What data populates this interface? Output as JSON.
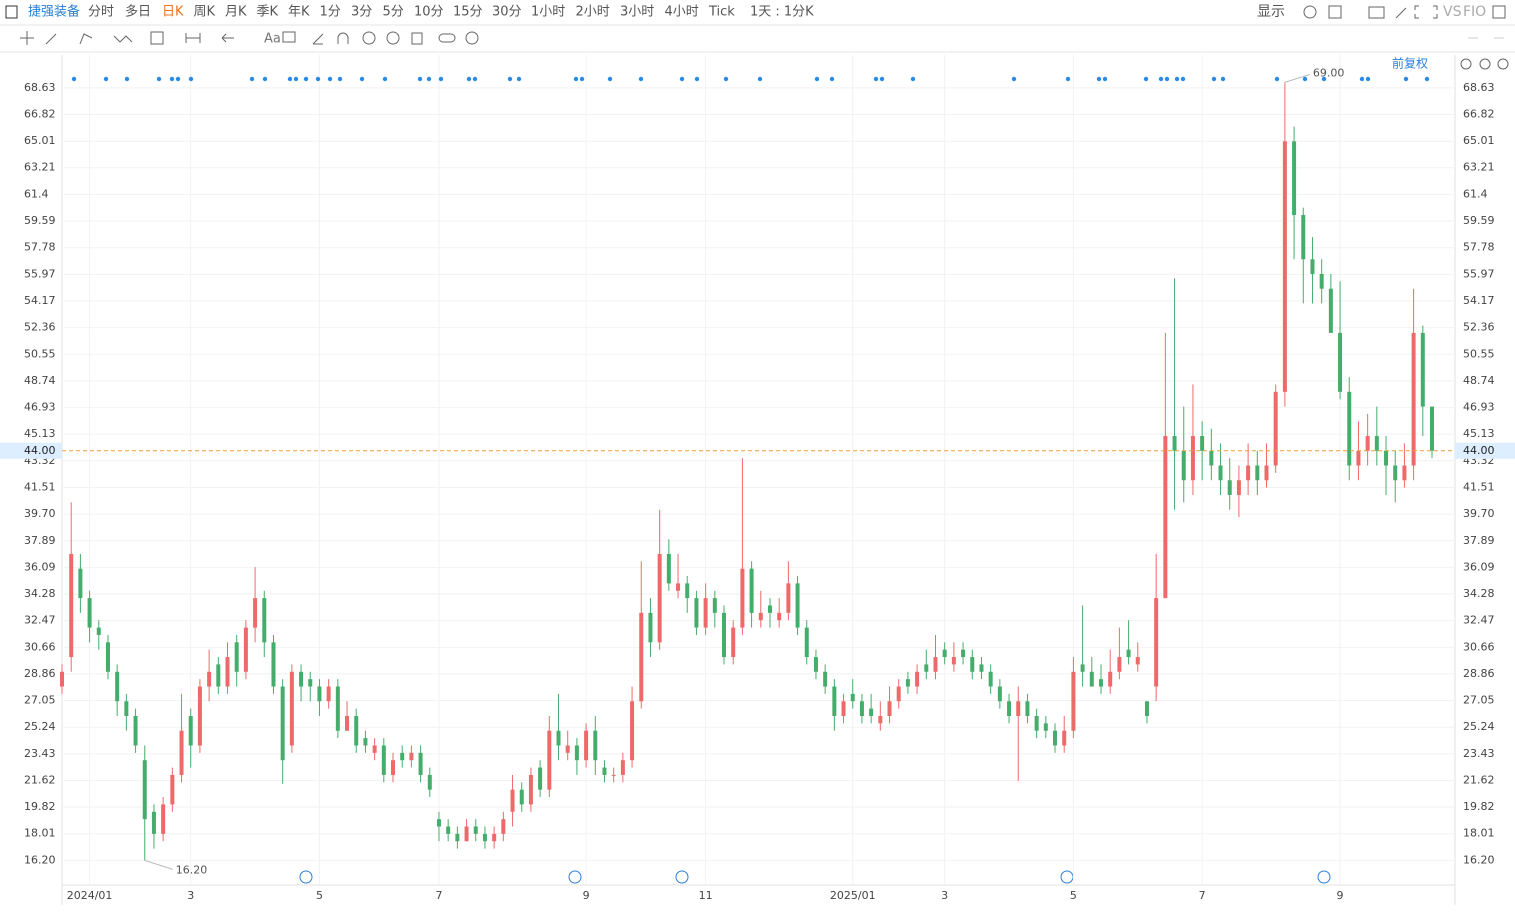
{
  "toolbar": {
    "symbol": "捷强装备",
    "periods": [
      "分时",
      "多日",
      "日K",
      "周K",
      "月K",
      "季K",
      "年K",
      "1分",
      "3分",
      "5分",
      "10分",
      "15分",
      "30分",
      "1小时",
      "2小时",
      "3小时",
      "4小时",
      "Tick",
      "1天 : 1分K"
    ],
    "active": "日K",
    "right": [
      "显示",
      "VS",
      "FIO"
    ],
    "text_tool": "Aa"
  },
  "chart_data": {
    "type": "candlestick",
    "adjust": "前复权",
    "up_color": "#ee6a6a",
    "down_color": "#45ad6b",
    "open": [
      28,
      30,
      36,
      34,
      32,
      31,
      29,
      27,
      26,
      23,
      19.5,
      18,
      20,
      22,
      26,
      24,
      28,
      29.5,
      28,
      31,
      29,
      32,
      34,
      31,
      28,
      24,
      29,
      28.5,
      28,
      27,
      28,
      25,
      26,
      24.5,
      23.5,
      24,
      22,
      23.5,
      23,
      23.5,
      22,
      19,
      18.5,
      18,
      17.5,
      18.5,
      18,
      17.5,
      18,
      19.5,
      21,
      20,
      22.5,
      21,
      25,
      23.5,
      24,
      23,
      25,
      22.5,
      22,
      22,
      23,
      27,
      33,
      31,
      37,
      34.5,
      35,
      34,
      32,
      34,
      33,
      30,
      32,
      36,
      32.5,
      33.5,
      32.5,
      33,
      35,
      32,
      30,
      29,
      28,
      26,
      27.5,
      27,
      26.5,
      25.5,
      26,
      27,
      28.5,
      28,
      29.5,
      29,
      30.5,
      29.5,
      30.5,
      30,
      29.5,
      29,
      28,
      27,
      26,
      27,
      26,
      25.5,
      25,
      24,
      25,
      29.5,
      29,
      28.5,
      28,
      29,
      30.5,
      29.5,
      27,
      28,
      34,
      45,
      44,
      42,
      45,
      44,
      43,
      42,
      41,
      42,
      43,
      42,
      43,
      48,
      65,
      60,
      57,
      56,
      55,
      52,
      48,
      43,
      44,
      45,
      44,
      43,
      42,
      43,
      52,
      47
    ],
    "high": [
      29.5,
      40.5,
      37,
      34.5,
      32.5,
      31.5,
      29.5,
      27.5,
      26.5,
      24,
      20,
      20.5,
      22.5,
      27.5,
      26.5,
      28.5,
      30.5,
      30,
      31,
      31.5,
      32.5,
      36.1,
      34.5,
      31.5,
      28.5,
      29.5,
      29.5,
      29,
      28.5,
      28.5,
      28.5,
      27,
      26.5,
      25,
      24.5,
      24.5,
      23.5,
      24,
      24,
      24,
      22.5,
      19.5,
      19,
      18.5,
      19,
      19,
      18.5,
      18.5,
      19.5,
      22,
      21.5,
      22.5,
      23,
      26,
      27.5,
      25,
      24.5,
      25.5,
      26,
      23,
      22.5,
      23.5,
      28,
      36.5,
      34,
      40,
      38,
      37,
      35.5,
      34.5,
      35,
      34.5,
      33.5,
      32.5,
      43.5,
      36.5,
      34.5,
      34,
      34,
      36.5,
      35.5,
      32.5,
      30.5,
      29.5,
      28.5,
      27.5,
      28.5,
      27.5,
      27.5,
      27,
      28,
      28.5,
      29,
      29.5,
      30.5,
      31.5,
      31,
      31,
      31,
      30.5,
      30,
      29.5,
      28.5,
      27.5,
      28,
      27.5,
      26.5,
      26,
      25.5,
      26,
      30,
      33.5,
      30,
      29.5,
      30.5,
      32,
      32.5,
      31,
      27,
      37,
      52,
      55.7,
      47,
      48.5,
      46,
      45.5,
      44.5,
      43.5,
      43,
      44.5,
      44,
      44.5,
      48.5,
      69,
      66,
      60.5,
      58.5,
      57,
      56,
      55.5,
      49,
      46,
      46.5,
      47,
      45,
      44,
      44.5,
      55,
      52.5,
      47
    ],
    "low": [
      27.5,
      29,
      33,
      31,
      30.5,
      28.5,
      26,
      25,
      23.5,
      16.2,
      17,
      17.5,
      19.5,
      21.5,
      22.5,
      23.5,
      27,
      27.5,
      27.5,
      28,
      28.5,
      31,
      30,
      27.5,
      21.4,
      23.5,
      27,
      27,
      26,
      26.5,
      24.5,
      25,
      23.5,
      23.5,
      23,
      21.5,
      21.5,
      22.5,
      22.5,
      21.5,
      20.5,
      17.5,
      17.5,
      17,
      17.5,
      17.5,
      17,
      17,
      17.5,
      18.5,
      19.5,
      19.5,
      20.5,
      20.5,
      23,
      23,
      22,
      22.5,
      22,
      21.5,
      21.5,
      21.5,
      22.5,
      26.5,
      30,
      30.5,
      34.5,
      34,
      33,
      31.5,
      31.5,
      32,
      29.5,
      29.5,
      31.5,
      32,
      32,
      32,
      32,
      32.5,
      31.5,
      29.5,
      28.5,
      27.5,
      25,
      25.5,
      26.5,
      25.5,
      25.5,
      25,
      25.5,
      26.5,
      27.5,
      27.5,
      28.5,
      28.5,
      29.5,
      29,
      29.5,
      28.5,
      28.5,
      27.5,
      26.5,
      25.5,
      21.6,
      25.5,
      24.5,
      24.5,
      23.5,
      23.5,
      24.5,
      28,
      28,
      27.5,
      27.5,
      28.5,
      29.5,
      29,
      25.5,
      27,
      34,
      40,
      40.5,
      41,
      42,
      42,
      41,
      40,
      39.5,
      41,
      41,
      41.5,
      42.5,
      47,
      57,
      54,
      54,
      54,
      52,
      47.5,
      42,
      42,
      43,
      43,
      41,
      40.5,
      41.5,
      42,
      45,
      43.5
    ],
    "close": [
      29,
      37,
      34,
      32,
      31.5,
      29,
      27,
      26,
      24,
      19,
      18,
      20,
      22,
      25,
      24,
      28,
      29,
      28,
      30,
      29,
      32,
      34,
      31,
      28,
      23,
      29,
      28,
      28,
      27,
      28,
      25,
      26,
      24,
      24,
      24,
      22,
      23,
      23,
      23.5,
      22,
      21,
      18.5,
      18,
      17.5,
      18.5,
      18,
      17.5,
      18,
      19,
      21,
      20,
      22,
      21,
      25,
      24,
      24,
      23,
      25,
      23,
      22,
      22,
      23,
      27,
      33,
      31,
      37,
      35,
      35,
      34,
      32,
      34,
      33,
      30,
      32,
      36,
      33,
      33,
      33,
      33,
      35,
      32,
      30,
      29,
      28,
      26,
      27,
      27,
      26,
      26,
      26,
      27,
      28,
      28,
      29,
      29,
      30,
      30,
      30,
      30,
      29,
      29,
      28,
      27,
      26,
      27,
      26,
      25,
      25,
      24,
      25,
      29,
      29,
      28,
      28,
      29,
      30,
      30,
      30,
      26,
      34,
      45,
      44,
      42,
      45,
      44,
      43,
      42,
      41,
      42,
      43,
      42,
      43,
      48,
      65,
      60,
      57,
      56,
      55,
      52,
      48,
      43,
      44,
      45,
      44,
      43,
      42,
      43,
      52,
      47,
      44
    ],
    "ylim": [
      14.53,
      70.86
    ],
    "yticks": [
      {
        "value": 16.2,
        "label": "16.20"
      },
      18.01,
      19.82,
      21.62,
      23.43,
      25.24,
      27.05,
      28.86,
      30.66,
      32.47,
      34.28,
      36.09,
      37.89,
      {
        "value": 39.7,
        "label": "39.70"
      },
      41.51,
      43.32,
      45.13,
      46.93,
      48.74,
      50.55,
      52.36,
      54.17,
      55.97,
      57.78,
      59.59,
      61.4,
      63.21,
      65.01,
      66.82,
      68.63
    ],
    "xticks": [
      {
        "value": 3,
        "label": "2024/01"
      },
      {
        "value": 14,
        "label": "3"
      },
      {
        "value": 28,
        "label": "5"
      },
      {
        "value": 41,
        "label": "7"
      },
      {
        "value": 57,
        "label": "9"
      },
      {
        "value": 70,
        "label": "11"
      },
      {
        "value": 86,
        "label": "2025/01"
      },
      {
        "value": 96,
        "label": "3"
      },
      {
        "value": 110,
        "label": "5"
      },
      {
        "value": 124,
        "label": "7"
      },
      {
        "value": 139,
        "label": "9"
      }
    ],
    "last_price": {
      "value": 44,
      "label": "44.00"
    },
    "last_color": "#f0a030",
    "annotations": {
      "max": "69.00",
      "min": "16.20"
    },
    "grid": true
  }
}
